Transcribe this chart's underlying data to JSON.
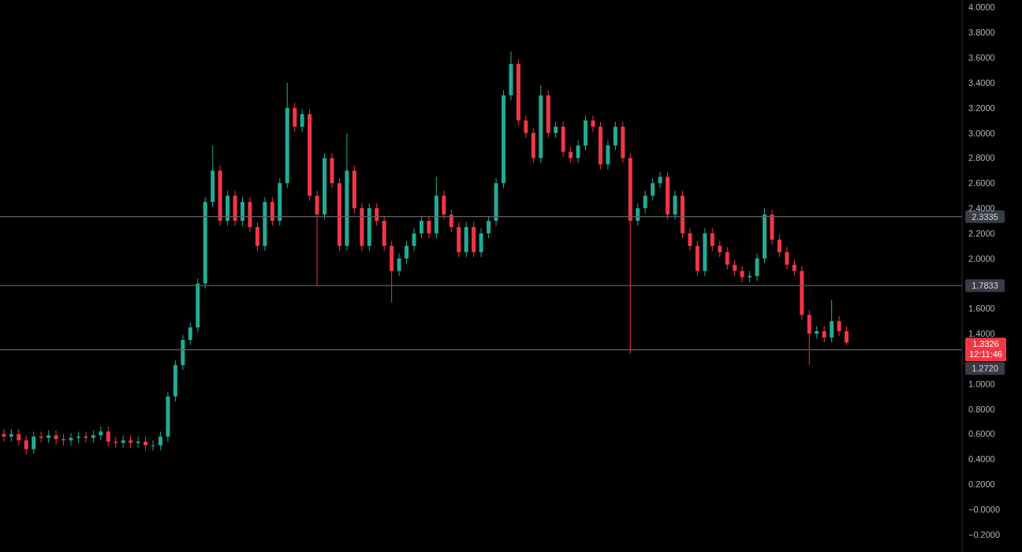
{
  "chart_data": {
    "type": "candlestick",
    "categories": [
      null,
      null,
      null,
      null,
      null,
      null,
      null,
      null,
      null,
      null,
      null,
      null,
      null,
      null,
      null,
      null,
      null,
      null,
      null,
      null,
      null,
      null,
      null,
      null,
      null,
      null,
      null,
      null,
      null,
      null,
      null,
      null,
      null,
      null,
      null,
      null,
      null,
      null,
      null,
      null,
      null,
      null,
      null,
      null,
      null,
      null,
      null,
      null,
      null,
      null,
      null,
      null,
      null,
      null,
      null,
      null,
      null,
      null,
      null,
      null,
      null,
      null,
      null,
      null,
      null,
      null,
      null,
      null,
      null,
      null,
      null,
      null,
      null,
      null,
      null,
      null,
      null,
      null,
      null,
      null,
      null,
      null,
      null,
      null,
      null,
      null,
      null,
      null,
      null,
      null,
      null,
      null,
      null,
      null,
      null,
      null,
      null,
      null,
      null,
      null,
      null,
      null,
      null,
      null,
      null,
      null,
      null,
      null,
      null,
      null,
      null,
      null,
      null,
      null,
      null,
      null,
      null,
      null,
      null,
      null,
      null,
      null,
      null,
      null,
      null,
      null,
      null,
      null,
      null
    ],
    "ohlc": [
      [
        0.6,
        0.64,
        0.54,
        0.58
      ],
      [
        0.58,
        0.64,
        0.54,
        0.6
      ],
      [
        0.6,
        0.64,
        0.51,
        0.55
      ],
      [
        0.55,
        0.59,
        0.44,
        0.48
      ],
      [
        0.48,
        0.62,
        0.44,
        0.58
      ],
      [
        0.58,
        0.62,
        0.53,
        0.57
      ],
      [
        0.57,
        0.63,
        0.53,
        0.59
      ],
      [
        0.59,
        0.63,
        0.52,
        0.56
      ],
      [
        0.56,
        0.6,
        0.51,
        0.55
      ],
      [
        0.55,
        0.61,
        0.51,
        0.57
      ],
      [
        0.57,
        0.62,
        0.53,
        0.58
      ],
      [
        0.58,
        0.62,
        0.53,
        0.57
      ],
      [
        0.57,
        0.63,
        0.53,
        0.59
      ],
      [
        0.59,
        0.66,
        0.55,
        0.62
      ],
      [
        0.62,
        0.66,
        0.5,
        0.54
      ],
      [
        0.54,
        0.58,
        0.49,
        0.53
      ],
      [
        0.53,
        0.59,
        0.49,
        0.55
      ],
      [
        0.55,
        0.59,
        0.49,
        0.53
      ],
      [
        0.53,
        0.58,
        0.49,
        0.54
      ],
      [
        0.54,
        0.58,
        0.47,
        0.51
      ],
      [
        0.51,
        0.55,
        0.47,
        0.51
      ],
      [
        0.51,
        0.62,
        0.47,
        0.58
      ],
      [
        0.58,
        0.94,
        0.54,
        0.9
      ],
      [
        0.9,
        1.19,
        0.86,
        1.15
      ],
      [
        1.15,
        1.39,
        1.11,
        1.35
      ],
      [
        1.35,
        1.49,
        1.31,
        1.45
      ],
      [
        1.45,
        1.84,
        1.41,
        1.8
      ],
      [
        1.8,
        2.49,
        1.76,
        2.45
      ],
      [
        2.45,
        2.9,
        2.41,
        2.7
      ],
      [
        2.7,
        2.74,
        2.26,
        2.3
      ],
      [
        2.3,
        2.54,
        2.26,
        2.5
      ],
      [
        2.5,
        2.54,
        2.26,
        2.3
      ],
      [
        2.3,
        2.49,
        2.26,
        2.45
      ],
      [
        2.45,
        2.49,
        2.21,
        2.25
      ],
      [
        2.25,
        2.29,
        2.06,
        2.1
      ],
      [
        2.1,
        2.49,
        2.06,
        2.45
      ],
      [
        2.45,
        2.49,
        2.26,
        2.3
      ],
      [
        2.3,
        2.64,
        2.26,
        2.6
      ],
      [
        2.6,
        3.4,
        2.56,
        3.2
      ],
      [
        3.2,
        3.24,
        3.01,
        3.05
      ],
      [
        3.05,
        3.19,
        3.01,
        3.15
      ],
      [
        3.15,
        3.19,
        2.46,
        2.5
      ],
      [
        2.5,
        2.54,
        1.78,
        2.35
      ],
      [
        2.35,
        2.84,
        2.31,
        2.8
      ],
      [
        2.8,
        2.84,
        2.56,
        2.6
      ],
      [
        2.6,
        2.64,
        2.06,
        2.1
      ],
      [
        2.1,
        3.0,
        2.06,
        2.7
      ],
      [
        2.7,
        2.74,
        2.36,
        2.4
      ],
      [
        2.4,
        2.44,
        2.06,
        2.1
      ],
      [
        2.1,
        2.44,
        2.06,
        2.4
      ],
      [
        2.4,
        2.44,
        2.26,
        2.3
      ],
      [
        2.3,
        2.34,
        2.06,
        2.1
      ],
      [
        2.1,
        2.14,
        1.65,
        1.9
      ],
      [
        1.9,
        2.04,
        1.86,
        2.0
      ],
      [
        2.0,
        2.14,
        1.96,
        2.1
      ],
      [
        2.1,
        2.24,
        2.06,
        2.2
      ],
      [
        2.2,
        2.34,
        2.16,
        2.3
      ],
      [
        2.3,
        2.34,
        2.16,
        2.2
      ],
      [
        2.2,
        2.65,
        2.16,
        2.5
      ],
      [
        2.5,
        2.54,
        2.31,
        2.35
      ],
      [
        2.35,
        2.39,
        2.21,
        2.25
      ],
      [
        2.25,
        2.29,
        2.01,
        2.05
      ],
      [
        2.05,
        2.29,
        2.01,
        2.25
      ],
      [
        2.25,
        2.29,
        2.01,
        2.05
      ],
      [
        2.05,
        2.24,
        2.01,
        2.2
      ],
      [
        2.2,
        2.34,
        2.16,
        2.3
      ],
      [
        2.3,
        2.64,
        2.26,
        2.6
      ],
      [
        2.6,
        3.34,
        2.56,
        3.3
      ],
      [
        3.3,
        3.65,
        3.26,
        3.55
      ],
      [
        3.55,
        3.59,
        3.06,
        3.1
      ],
      [
        3.1,
        3.14,
        2.96,
        3.0
      ],
      [
        3.0,
        3.04,
        2.76,
        2.8
      ],
      [
        2.8,
        3.38,
        2.76,
        3.3
      ],
      [
        3.3,
        3.34,
        2.96,
        3.0
      ],
      [
        3.0,
        3.09,
        2.96,
        3.05
      ],
      [
        3.05,
        3.09,
        2.81,
        2.85
      ],
      [
        2.85,
        2.89,
        2.76,
        2.8
      ],
      [
        2.8,
        2.94,
        2.76,
        2.9
      ],
      [
        2.9,
        3.14,
        2.86,
        3.1
      ],
      [
        3.1,
        3.14,
        3.01,
        3.05
      ],
      [
        3.05,
        3.09,
        2.71,
        2.75
      ],
      [
        2.75,
        2.94,
        2.71,
        2.9
      ],
      [
        2.9,
        3.09,
        2.86,
        3.05
      ],
      [
        3.05,
        3.09,
        2.76,
        2.8
      ],
      [
        2.8,
        2.84,
        1.24,
        2.3
      ],
      [
        2.3,
        2.44,
        2.26,
        2.4
      ],
      [
        2.4,
        2.54,
        2.36,
        2.5
      ],
      [
        2.5,
        2.64,
        2.46,
        2.6
      ],
      [
        2.6,
        2.69,
        2.56,
        2.65
      ],
      [
        2.65,
        2.69,
        2.31,
        2.35
      ],
      [
        2.35,
        2.54,
        2.31,
        2.5
      ],
      [
        2.5,
        2.54,
        2.16,
        2.2
      ],
      [
        2.2,
        2.24,
        2.06,
        2.1
      ],
      [
        2.1,
        2.14,
        1.86,
        1.9
      ],
      [
        1.9,
        2.24,
        1.86,
        2.2
      ],
      [
        2.2,
        2.24,
        2.06,
        2.1
      ],
      [
        2.1,
        2.14,
        2.01,
        2.05
      ],
      [
        2.05,
        2.09,
        1.91,
        1.95
      ],
      [
        1.95,
        1.99,
        1.86,
        1.9
      ],
      [
        1.9,
        1.94,
        1.81,
        1.85
      ],
      [
        1.85,
        1.9,
        1.81,
        1.86
      ],
      [
        1.86,
        2.04,
        1.82,
        2.0
      ],
      [
        2.0,
        2.4,
        1.96,
        2.35
      ],
      [
        2.35,
        2.39,
        2.11,
        2.15
      ],
      [
        2.15,
        2.19,
        2.01,
        2.05
      ],
      [
        2.05,
        2.09,
        1.91,
        1.95
      ],
      [
        1.95,
        1.99,
        1.86,
        1.9
      ],
      [
        1.9,
        1.94,
        1.51,
        1.55
      ],
      [
        1.55,
        1.59,
        1.15,
        1.4
      ],
      [
        1.4,
        1.46,
        1.36,
        1.42
      ],
      [
        1.42,
        1.46,
        1.33,
        1.37
      ],
      [
        1.37,
        1.67,
        1.33,
        1.5
      ],
      [
        1.5,
        1.54,
        1.38,
        1.42
      ],
      [
        1.42,
        1.46,
        1.31,
        1.33
      ],
      null,
      null,
      null,
      null,
      null,
      null,
      null,
      null,
      null,
      null,
      null,
      null,
      null,
      null,
      null
    ],
    "colors": [
      "#f23645",
      "#22ab94",
      "#f23645",
      "#f23645",
      "#22ab94",
      "#f23645",
      "#22ab94",
      "#f23645",
      "#f23645",
      "#22ab94",
      "#22ab94",
      "#f23645",
      "#22ab94",
      "#22ab94",
      "#f23645",
      "#f23645",
      "#22ab94",
      "#f23645",
      "#22ab94",
      "#f23645",
      "#22ab94",
      "#22ab94",
      "#22ab94",
      "#22ab94",
      "#22ab94",
      "#22ab94",
      "#22ab94",
      "#22ab94",
      "#22ab94",
      "#f23645",
      "#22ab94",
      "#f23645",
      "#22ab94",
      "#f23645",
      "#f23645",
      "#22ab94",
      "#f23645",
      "#22ab94",
      "#22ab94",
      "#f23645",
      "#22ab94",
      "#f23645",
      "#f23645",
      "#22ab94",
      "#f23645",
      "#f23645",
      "#22ab94",
      "#f23645",
      "#f23645",
      "#22ab94",
      "#f23645",
      "#f23645",
      "#f23645",
      "#22ab94",
      "#22ab94",
      "#22ab94",
      "#22ab94",
      "#f23645",
      "#22ab94",
      "#f23645",
      "#f23645",
      "#f23645",
      "#22ab94",
      "#f23645",
      "#22ab94",
      "#22ab94",
      "#22ab94",
      "#22ab94",
      "#22ab94",
      "#f23645",
      "#f23645",
      "#f23645",
      "#22ab94",
      "#f23645",
      "#22ab94",
      "#f23645",
      "#f23645",
      "#22ab94",
      "#22ab94",
      "#f23645",
      "#f23645",
      "#22ab94",
      "#22ab94",
      "#f23645",
      "#f23645",
      "#22ab94",
      "#22ab94",
      "#22ab94",
      "#22ab94",
      "#f23645",
      "#22ab94",
      "#f23645",
      "#f23645",
      "#f23645",
      "#22ab94",
      "#f23645",
      "#f23645",
      "#f23645",
      "#f23645",
      "#f23645",
      "#22ab94",
      "#22ab94",
      "#22ab94",
      "#f23645",
      "#f23645",
      "#f23645",
      "#f23645",
      "#f23645",
      "#f23645",
      "#22ab94",
      "#f23645",
      "#22ab94",
      "#f23645",
      "#f23645",
      null,
      null,
      null,
      null,
      null,
      null,
      null,
      null,
      null,
      null,
      null,
      null,
      null,
      null,
      null
    ],
    "ylim": [
      -0.34,
      4.06
    ],
    "yticks": [
      {
        "value": -0.2,
        "label": "−0.2000"
      },
      {
        "value": 0,
        "label": "−0.0000"
      },
      {
        "value": 0.2,
        "label": "0.2000"
      },
      {
        "value": 0.4,
        "label": "0.4000"
      },
      {
        "value": 0.6,
        "label": "0.6000"
      },
      {
        "value": 0.8,
        "label": "0.8000"
      },
      {
        "value": 1.0,
        "label": "1.0000"
      },
      {
        "value": 1.4,
        "label": "1.4000"
      },
      {
        "value": 1.6,
        "label": "1.6000"
      },
      {
        "value": 2.0,
        "label": "2.0000"
      },
      {
        "value": 2.2,
        "label": "2.2000"
      },
      {
        "value": 2.4,
        "label": "2.4000"
      },
      {
        "value": 2.6,
        "label": "2.6000"
      },
      {
        "value": 2.8,
        "label": "2.8000"
      },
      {
        "value": 3.0,
        "label": "3.0000"
      },
      {
        "value": 3.2,
        "label": "3.2000"
      },
      {
        "value": 3.4,
        "label": "3.4000"
      },
      {
        "value": 3.6,
        "label": "3.6000"
      },
      {
        "value": 3.8,
        "label": "3.8000"
      },
      {
        "value": 4.0,
        "label": "4.0000"
      }
    ],
    "tick_labels": "y",
    "ref_lines": [
      {
        "axis": "y",
        "value": 2.3335,
        "label": "2.3335",
        "color": "#5d606b"
      },
      {
        "axis": "y",
        "value": 1.7833,
        "label": "1.7833",
        "color": "#5d606b"
      },
      {
        "axis": "y",
        "value": 1.272,
        "label": "1.2720",
        "color": "#5d606b"
      }
    ],
    "annotations": [
      "1.3326",
      "12:11:46"
    ]
  }
}
